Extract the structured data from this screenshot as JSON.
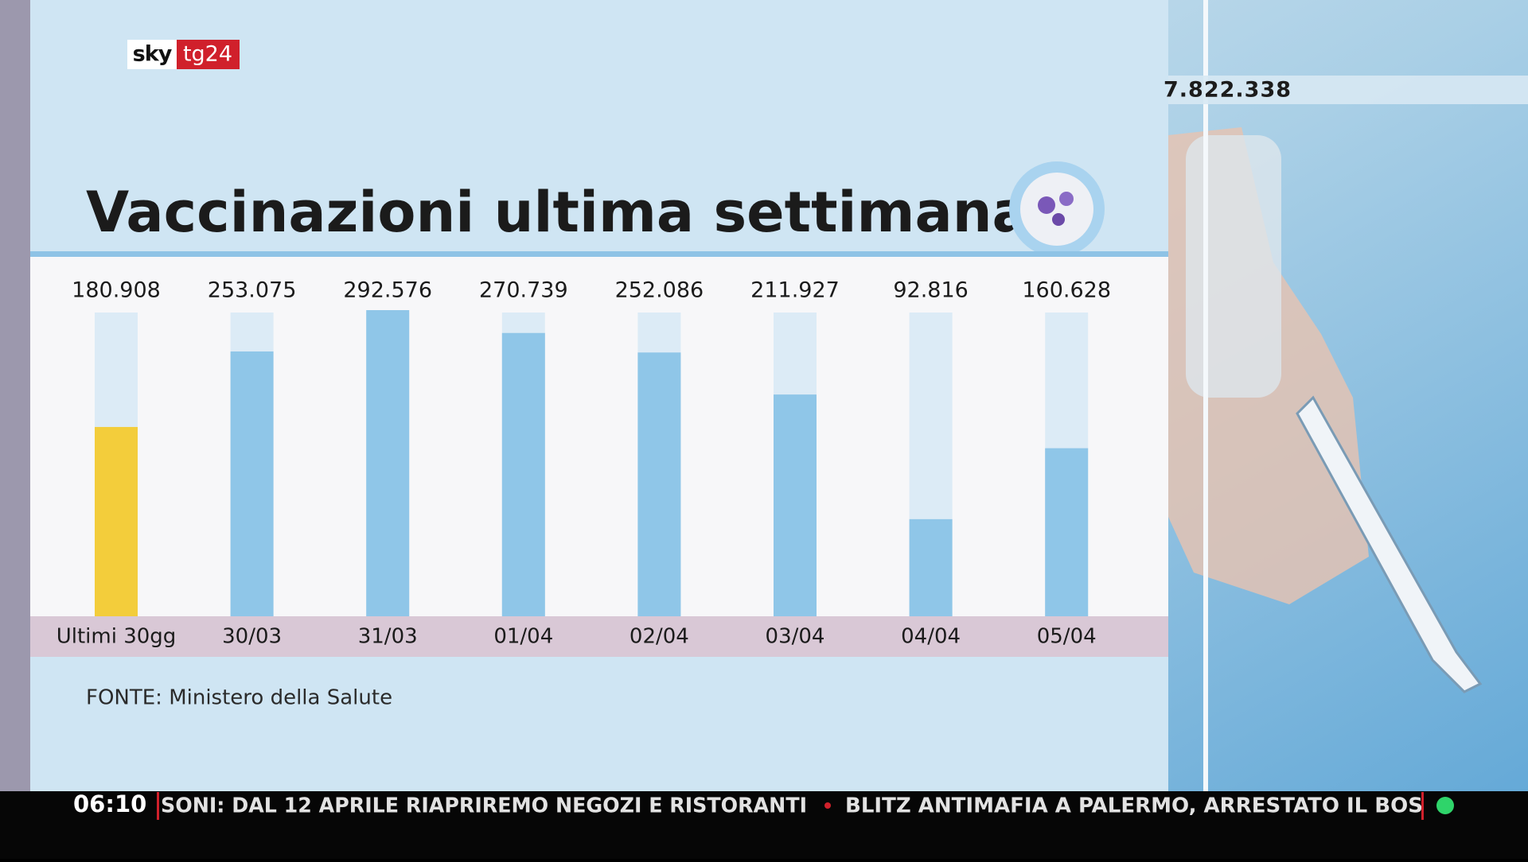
{
  "logo": {
    "brand": "sky",
    "channel": "tg24"
  },
  "counter": "7.822.338",
  "ticker": {
    "time": "06:10",
    "items": [
      "SONI: DAL 12 APRILE RIAPRIREMO NEGOZI E RISTORANTI",
      "BLITZ ANTIMAFIA A PALERMO, ARRESTATO IL BOS"
    ]
  },
  "chart_data": {
    "type": "bar",
    "title": "Vaccinazioni ultima settimana",
    "source": "FONTE: Ministero della Salute",
    "categories": [
      "Ultimi 30gg",
      "30/03",
      "31/03",
      "01/04",
      "02/04",
      "03/04",
      "04/04",
      "05/04"
    ],
    "values": [
      180908,
      253075,
      292576,
      270739,
      252086,
      211927,
      92816,
      160628
    ],
    "value_labels": [
      "180.908",
      "253.075",
      "292.576",
      "270.739",
      "252.086",
      "211.927",
      "92.816",
      "160.628"
    ],
    "colors": [
      "#f3cd3b",
      "#8fc6e8",
      "#8fc6e8",
      "#8fc6e8",
      "#8fc6e8",
      "#8fc6e8",
      "#8fc6e8",
      "#8fc6e8"
    ]
  }
}
